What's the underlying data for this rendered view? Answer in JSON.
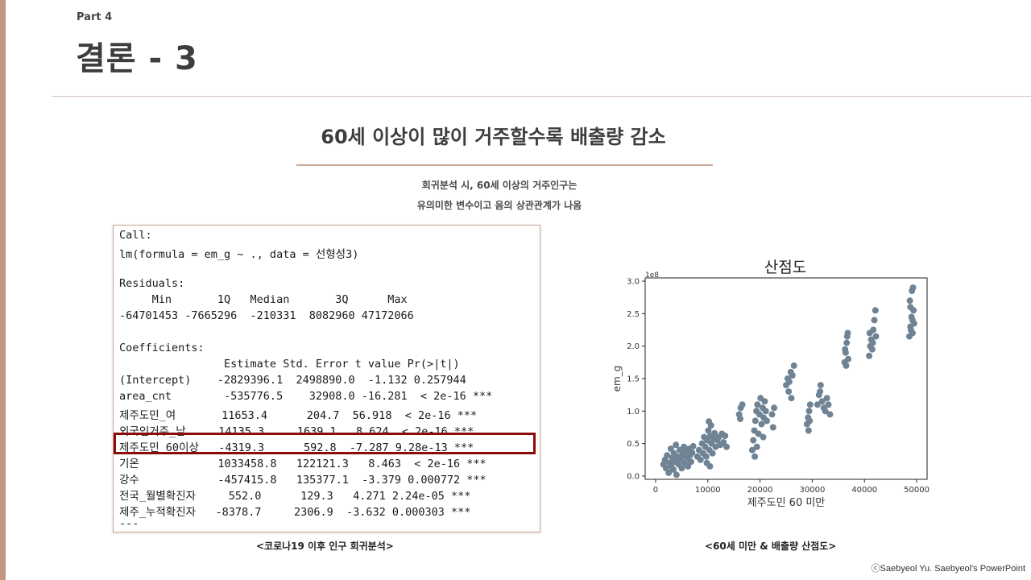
{
  "part_label": "Part 4",
  "title": "결론 - 3",
  "headline": "60세 이상이 많이 거주할수록 배출량 감소",
  "description": [
    "회귀분석 시, 60세 이상의 거주인구는",
    "유의미한 변수이고 음의 상관관계가 나옴"
  ],
  "r_output": [
    "Call:",
    "lm(formula = em_g ~ ., data = 선형성3)",
    "",
    "Residuals:",
    "     Min       1Q   Median       3Q      Max",
    "-64701453 -7665296  -210331  8082960 47172066",
    "",
    "Coefficients:",
    "                Estimate Std. Error t value Pr(>|t|)",
    "(Intercept)    -2829396.1  2498890.0  -1.132 0.257944",
    "area_cnt        -535776.5    32908.0 -16.281  < 2e-16 ***",
    "제주도민_여       11653.4      204.7  56.918  < 2e-16 ***",
    "외국인거주_남     14135.3     1639.1   8.624  < 2e-16 ***",
    "제주도민_60이상   -4319.3      592.8  -7.287 9.28e-13 ***",
    "기온            1033458.8   122121.3   8.463  < 2e-16 ***",
    "강수            -457415.8   135377.1  -3.379 0.000772 ***",
    "전국_월별확진자     552.0      129.3   4.271 2.24e-05 ***",
    "제주_누적확진자   -8378.7     2306.9  -3.632 0.000303 ***",
    "---"
  ],
  "caption_left": "<코로나19 이후 인구 회귀분석>",
  "caption_right": "<60세 미만 & 배출량 산점도>",
  "copyright": "ⓒSaebyeol Yu. Saebyeol's PowerPoint",
  "colors": {
    "accent": "#c49581",
    "highlight": "#8b0a0a",
    "points": "#6f8394"
  },
  "chart_data": {
    "type": "scatter",
    "title": "산점도",
    "xlabel": "제주도민 60 미만",
    "ylabel": "em_g",
    "y_multiplier": "1e8",
    "xlim": [
      -2000,
      52000
    ],
    "ylim": [
      -0.05,
      3.05
    ],
    "x_ticks": [
      0,
      10000,
      20000,
      30000,
      40000,
      50000
    ],
    "y_ticks": [
      0.0,
      0.5,
      1.0,
      1.5,
      2.0,
      2.5,
      3.0
    ],
    "y_tick_labels": [
      "0.0",
      "0.5",
      "1.0",
      "1.5",
      "2.0",
      "2.5",
      "3.0"
    ],
    "points": [
      [
        1500,
        0.18
      ],
      [
        1800,
        0.25
      ],
      [
        2000,
        0.12
      ],
      [
        2200,
        0.32
      ],
      [
        2500,
        0.05
      ],
      [
        2700,
        0.2
      ],
      [
        2900,
        0.42
      ],
      [
        3000,
        0.15
      ],
      [
        3200,
        0.28
      ],
      [
        3400,
        0.1
      ],
      [
        3500,
        0.35
      ],
      [
        3700,
        0.22
      ],
      [
        3900,
        0.48
      ],
      [
        4000,
        0.02
      ],
      [
        4200,
        0.3
      ],
      [
        4400,
        0.18
      ],
      [
        4600,
        0.4
      ],
      [
        4800,
        0.26
      ],
      [
        5000,
        0.12
      ],
      [
        5200,
        0.33
      ],
      [
        5400,
        0.45
      ],
      [
        5600,
        0.2
      ],
      [
        5800,
        0.38
      ],
      [
        6000,
        0.28
      ],
      [
        6200,
        0.15
      ],
      [
        6400,
        0.42
      ],
      [
        6600,
        0.32
      ],
      [
        6800,
        0.22
      ],
      [
        7000,
        0.36
      ],
      [
        7200,
        0.46
      ],
      [
        8000,
        0.3
      ],
      [
        8300,
        0.4
      ],
      [
        8600,
        0.25
      ],
      [
        8900,
        0.5
      ],
      [
        9100,
        0.35
      ],
      [
        9300,
        0.6
      ],
      [
        9500,
        0.45
      ],
      [
        9700,
        0.3
      ],
      [
        9900,
        0.55
      ],
      [
        10100,
        0.7
      ],
      [
        10300,
        0.4
      ],
      [
        10500,
        0.62
      ],
      [
        10700,
        0.5
      ],
      [
        10900,
        0.35
      ],
      [
        11100,
        0.58
      ],
      [
        11300,
        0.66
      ],
      [
        11500,
        0.45
      ],
      [
        11800,
        0.55
      ],
      [
        12100,
        0.6
      ],
      [
        12400,
        0.48
      ],
      [
        12700,
        0.65
      ],
      [
        13000,
        0.52
      ],
      [
        13300,
        0.62
      ],
      [
        13600,
        0.45
      ],
      [
        10200,
        0.84
      ],
      [
        10600,
        0.78
      ],
      [
        9800,
        0.2
      ],
      [
        10400,
        0.15
      ],
      [
        16000,
        0.95
      ],
      [
        16300,
        1.05
      ],
      [
        16600,
        1.1
      ],
      [
        16200,
        0.88
      ],
      [
        18500,
        0.4
      ],
      [
        18700,
        0.55
      ],
      [
        18900,
        0.7
      ],
      [
        19100,
        0.85
      ],
      [
        19300,
        1.0
      ],
      [
        19500,
        1.1
      ],
      [
        19700,
        0.65
      ],
      [
        19900,
        0.95
      ],
      [
        20100,
        1.2
      ],
      [
        20300,
        0.8
      ],
      [
        20500,
        1.05
      ],
      [
        20700,
        0.9
      ],
      [
        20900,
        1.15
      ],
      [
        21100,
        1.0
      ],
      [
        19000,
        0.3
      ],
      [
        19400,
        0.45
      ],
      [
        20600,
        0.6
      ],
      [
        21300,
        0.85
      ],
      [
        22300,
        0.95
      ],
      [
        22500,
        0.75
      ],
      [
        22700,
        1.05
      ],
      [
        25000,
        1.4
      ],
      [
        25300,
        1.5
      ],
      [
        25600,
        1.45
      ],
      [
        25900,
        1.6
      ],
      [
        26200,
        1.55
      ],
      [
        26500,
        1.7
      ],
      [
        25500,
        1.3
      ],
      [
        26000,
        1.2
      ],
      [
        29000,
        0.8
      ],
      [
        29200,
        0.9
      ],
      [
        29400,
        1.0
      ],
      [
        29600,
        1.1
      ],
      [
        29300,
        0.7
      ],
      [
        29500,
        0.85
      ],
      [
        31000,
        1.1
      ],
      [
        31300,
        1.25
      ],
      [
        31600,
        1.4
      ],
      [
        31900,
        1.15
      ],
      [
        32200,
        1.05
      ],
      [
        32500,
        1.0
      ],
      [
        32800,
        1.2
      ],
      [
        33100,
        1.1
      ],
      [
        33400,
        0.95
      ],
      [
        31500,
        1.3
      ],
      [
        36200,
        1.75
      ],
      [
        36400,
        1.9
      ],
      [
        36600,
        2.05
      ],
      [
        36800,
        2.2
      ],
      [
        36500,
        1.7
      ],
      [
        36300,
        1.95
      ],
      [
        36700,
        2.15
      ],
      [
        36900,
        1.8
      ],
      [
        40900,
        1.85
      ],
      [
        41100,
        2.0
      ],
      [
        41300,
        2.1
      ],
      [
        41500,
        1.95
      ],
      [
        41700,
        2.25
      ],
      [
        41900,
        2.4
      ],
      [
        42100,
        2.55
      ],
      [
        41600,
        2.05
      ],
      [
        41000,
        2.2
      ],
      [
        42200,
        2.15
      ],
      [
        48600,
        2.15
      ],
      [
        48800,
        2.3
      ],
      [
        49000,
        2.45
      ],
      [
        49200,
        2.4
      ],
      [
        49400,
        2.55
      ],
      [
        48700,
        2.7
      ],
      [
        49100,
        2.85
      ],
      [
        49300,
        2.9
      ],
      [
        48900,
        2.25
      ],
      [
        49500,
        2.35
      ],
      [
        48800,
        2.6
      ],
      [
        49200,
        2.2
      ]
    ]
  }
}
